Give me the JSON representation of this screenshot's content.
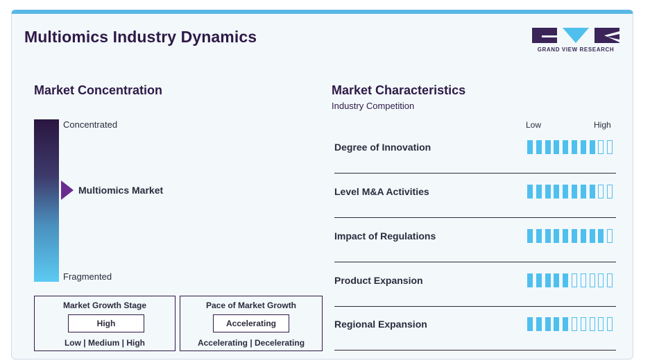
{
  "header": {
    "title": "Multiomics Industry Dynamics",
    "logo_text": "GRAND VIEW RESEARCH"
  },
  "concentration": {
    "heading": "Market Concentration",
    "top_label": "Concentrated",
    "bottom_label": "Fragmented",
    "market_label": "Multiomics Market"
  },
  "growth_stage": {
    "title": "Market Growth Stage",
    "value": "High",
    "options": "Low  |  Medium  |  High"
  },
  "growth_pace": {
    "title": "Pace of Market Growth",
    "value": "Accelerating",
    "options": "Accelerating  |  Decelerating"
  },
  "characteristics": {
    "heading": "Market Characteristics",
    "subheading": "Industry Competition",
    "low_label": "Low",
    "high_label": "High",
    "total_segments": 10,
    "rows": [
      {
        "label": "Degree of Innovation",
        "level": 8
      },
      {
        "label": "Level M&A Activities",
        "level": 8
      },
      {
        "label": "Impact of Regulations",
        "level": 9
      },
      {
        "label": "Product Expansion",
        "level": 5
      },
      {
        "label": "Regional Expansion",
        "level": 5
      }
    ]
  },
  "colors": {
    "accent": "#5ab8e6",
    "segment": "#4fc0ee",
    "title": "#2e1a47",
    "pointer": "#6b2c91"
  }
}
